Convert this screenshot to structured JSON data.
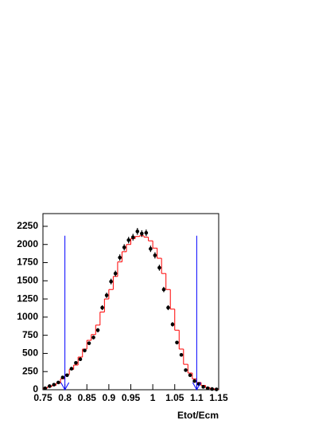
{
  "chart_data": {
    "type": "histogram",
    "xlabel": "Etot/Ecm",
    "bins": [
      0.75,
      0.76,
      0.77,
      0.78,
      0.79,
      0.8,
      0.81,
      0.82,
      0.83,
      0.84,
      0.85,
      0.86,
      0.87,
      0.88,
      0.89,
      0.9,
      0.91,
      0.92,
      0.93,
      0.94,
      0.95,
      0.96,
      0.97,
      0.98,
      0.99,
      1.0,
      1.01,
      1.02,
      1.03,
      1.04,
      1.05,
      1.06,
      1.07,
      1.08,
      1.09,
      1.1,
      1.11,
      1.12,
      1.13,
      1.14,
      1.15
    ],
    "values": [
      20,
      40,
      60,
      90,
      150,
      210,
      280,
      340,
      450,
      560,
      680,
      760,
      890,
      1070,
      1250,
      1380,
      1560,
      1760,
      1900,
      2000,
      2080,
      2110,
      2120,
      2100,
      2050,
      1950,
      1810,
      1600,
      1380,
      1110,
      820,
      560,
      350,
      230,
      150,
      100,
      60,
      30,
      15,
      5
    ],
    "color": "#ff0000",
    "data_points": [
      20,
      50,
      70,
      100,
      170,
      200,
      290,
      370,
      420,
      540,
      640,
      720,
      820,
      1130,
      1300,
      1490,
      1600,
      1820,
      1960,
      2060,
      2100,
      2180,
      2150,
      2160,
      1940,
      1850,
      1680,
      1380,
      1130,
      900,
      650,
      480,
      270,
      200,
      120,
      80,
      40,
      20,
      10,
      5
    ],
    "data_errors": [
      5,
      7,
      8,
      10,
      13,
      14,
      17,
      19,
      20,
      23,
      25,
      27,
      29,
      34,
      36,
      39,
      40,
      43,
      44,
      45,
      46,
      47,
      46,
      46,
      44,
      43,
      41,
      37,
      34,
      30,
      25,
      22,
      16,
      14,
      11,
      9,
      6,
      4,
      3,
      2
    ],
    "data_color": "#000000",
    "cuts": [
      0.8,
      1.1
    ],
    "cut_height": 2120,
    "cut_color": "#0000ff",
    "xlim": [
      0.75,
      1.15
    ],
    "ylim": [
      0,
      2425
    ],
    "xticks": [
      0.75,
      0.8,
      0.85,
      0.9,
      0.95,
      1,
      1.05,
      1.1,
      1.15
    ],
    "yticks": [
      0,
      250,
      500,
      750,
      1000,
      1250,
      1500,
      1750,
      2000,
      2250
    ]
  }
}
